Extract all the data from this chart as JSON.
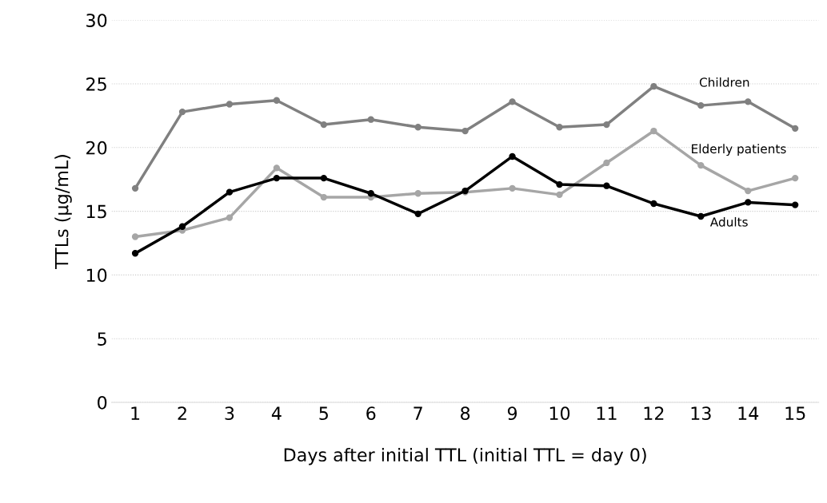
{
  "chart_data": {
    "type": "line",
    "xlabel": "Days after initial TTL (initial TTL = day 0)",
    "ylabel": "TTLs (µg/mL)",
    "categories": [
      "1",
      "2",
      "3",
      "4",
      "5",
      "6",
      "7",
      "8",
      "9",
      "10",
      "11",
      "12",
      "13",
      "14",
      "15"
    ],
    "series": [
      {
        "name": "Children",
        "color": "#808080",
        "values": [
          16.8,
          22.8,
          23.4,
          23.7,
          21.8,
          22.2,
          21.6,
          21.3,
          23.6,
          21.6,
          21.8,
          24.8,
          23.3,
          23.6,
          21.5
        ]
      },
      {
        "name": "Elderly patients",
        "color": "#a6a6a6",
        "values": [
          13.0,
          13.5,
          14.5,
          18.4,
          16.1,
          16.1,
          16.4,
          16.5,
          16.8,
          16.3,
          18.8,
          21.3,
          18.6,
          16.6,
          17.6
        ]
      },
      {
        "name": "Adults",
        "color": "#000000",
        "values": [
          11.7,
          13.8,
          16.5,
          17.6,
          17.6,
          16.4,
          14.8,
          16.6,
          19.3,
          17.1,
          17.0,
          15.6,
          14.6,
          15.7,
          15.5
        ]
      }
    ],
    "ylim": [
      0,
      30
    ],
    "yticks": [
      0,
      5,
      10,
      15,
      20,
      25,
      30
    ],
    "grid": "y",
    "marker": "circle",
    "line_style": "solid"
  }
}
